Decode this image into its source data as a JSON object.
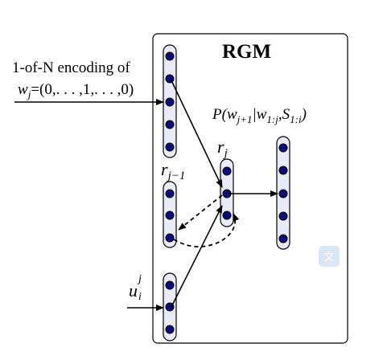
{
  "model": {
    "title": "RGM"
  },
  "labels": {
    "encoding_line1": "1-of-N encoding of",
    "encoding_line2_var": "w",
    "encoding_line2_sub": "j",
    "encoding_line2_rest": "=(0,. . . ,1,. . . ,0)",
    "prob_P": "P(",
    "prob_w1": "w",
    "prob_w1_sub": "j+1",
    "prob_mid": "|w",
    "prob_w2_sub": "1:j",
    "prob_comma": ",S",
    "prob_s_sub": "1:i",
    "prob_close": ")",
    "r_j_var": "r",
    "r_j_sub": "j",
    "r_jm1_var": "r",
    "r_jm1_sub": "j−1",
    "u_var": "u",
    "u_sup": "j",
    "u_sub": "i"
  },
  "colors": {
    "node_fill": "#0a0a78",
    "node_stroke": "#000000",
    "bar_fill": "#eaeaf8",
    "bar_stroke": "#000000",
    "box_stroke": "#000000",
    "watermark": "#dbe6f5"
  },
  "icons": {
    "watermark": "translate-icon"
  }
}
